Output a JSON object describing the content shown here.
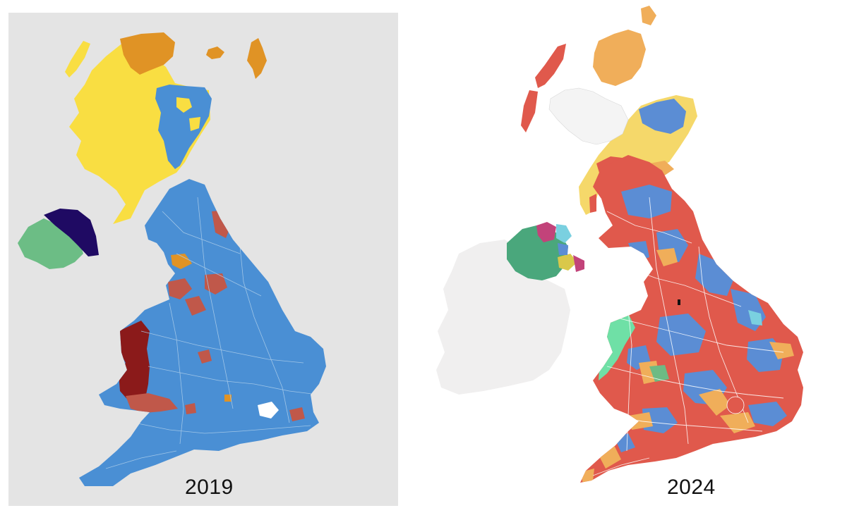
{
  "maps": [
    {
      "year_label": "2019",
      "colors": {
        "background": "#e4e4e4",
        "conservative": "#4a8fd4",
        "snp": "#f9de42",
        "libdem": "#e09325",
        "dup": "#1f0a63",
        "sinn_fein": "#6cbd85",
        "labour_wales": "#8b1a1a",
        "labour": "#c0584a"
      }
    },
    {
      "year_label": "2024",
      "colors": {
        "ireland": "#f0efef",
        "labour": "#e0594c",
        "conservative": "#5b8dd4",
        "libdem": "#f0ae5a",
        "snp": "#f5d86a",
        "highlands": "#f4f4f4",
        "plaid": "#6fe0a6",
        "green": "#6dbb84",
        "dup": "#c2437a",
        "sinn_fein": "#4aa77c",
        "alliance": "#d9c84a",
        "reform": "#7ad0e0"
      }
    }
  ]
}
